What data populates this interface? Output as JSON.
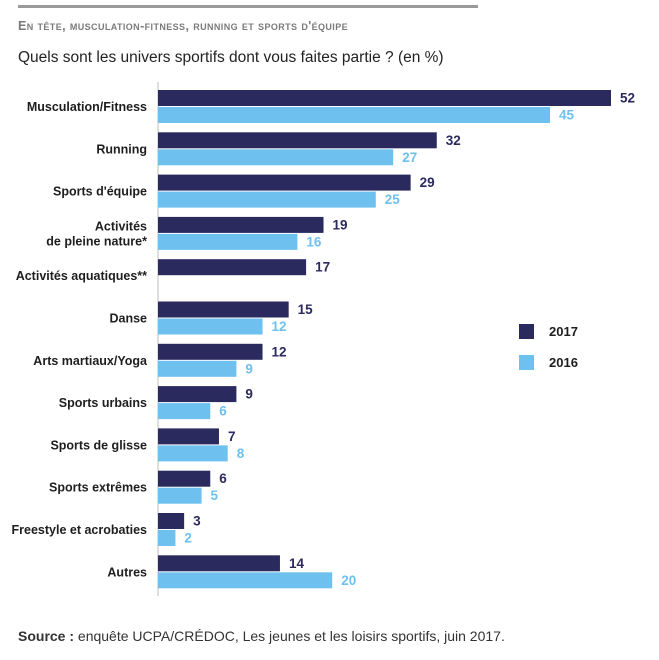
{
  "header": {
    "title": "En tête, musculation-fitness, running et sports d'équipe",
    "subtitle": "Quels sont les univers sportifs dont vous faites partie ? (en %)"
  },
  "footer": {
    "source_label": "Source :",
    "source_text": " enquête UCPA/CRÉDOC, Les jeunes et les loisirs sportifs, juin 2017."
  },
  "chart_data": {
    "type": "bar",
    "orientation": "horizontal",
    "categories": [
      [
        "Musculation/Fitness"
      ],
      [
        "Running"
      ],
      [
        "Sports d'équipe"
      ],
      [
        "Activités",
        "de pleine nature*"
      ],
      [
        "Activités aquatiques**"
      ],
      [
        "Danse"
      ],
      [
        "Arts martiaux/Yoga"
      ],
      [
        "Sports urbains"
      ],
      [
        "Sports de glisse"
      ],
      [
        "Sports extrêmes"
      ],
      [
        "Freestyle et acrobaties"
      ],
      [
        "Autres"
      ]
    ],
    "series": [
      {
        "name": "2017",
        "color": "#2b2a5e",
        "values": [
          52,
          32,
          29,
          19,
          17,
          15,
          12,
          9,
          7,
          6,
          3,
          14
        ]
      },
      {
        "name": "2016",
        "color": "#6ec1ee",
        "values": [
          45,
          27,
          25,
          16,
          null,
          12,
          9,
          6,
          8,
          5,
          2,
          20
        ]
      }
    ],
    "xlim": [
      0,
      52
    ],
    "grid": false,
    "legend_position": "right"
  }
}
